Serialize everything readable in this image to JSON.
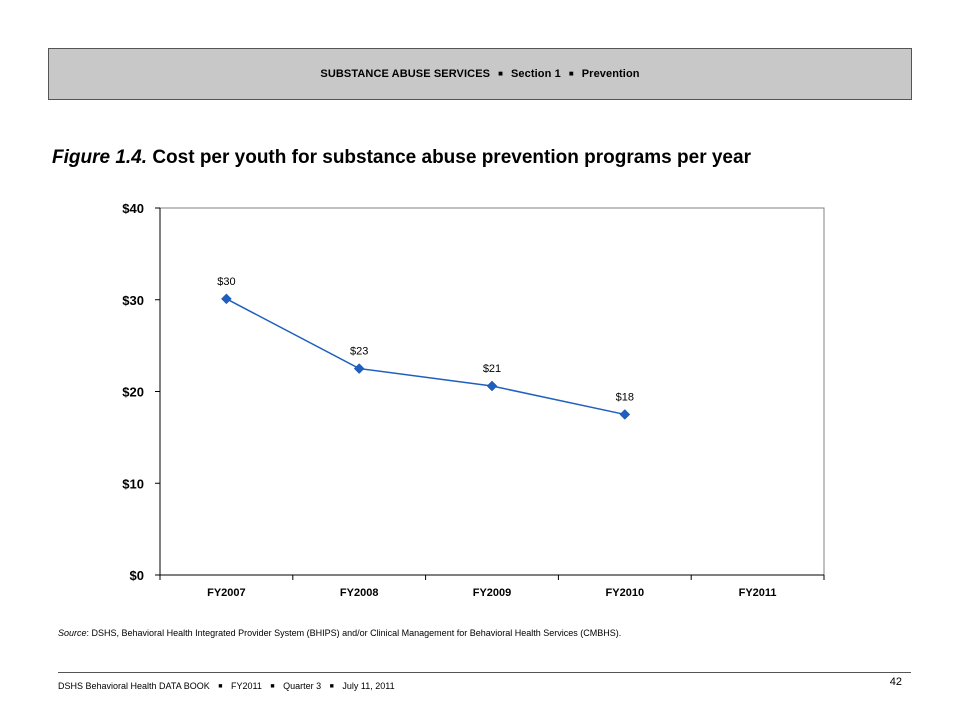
{
  "header": {
    "part1": "SUBSTANCE ABUSE SERVICES",
    "part2": "Section 1",
    "part3": "Prevention",
    "separator": "■"
  },
  "figure": {
    "label": "Figure 1.4.",
    "title": "Cost per youth for substance abuse prevention programs per year"
  },
  "chart_data": {
    "type": "line",
    "categories": [
      "FY2007",
      "FY2008",
      "FY2009",
      "FY2010",
      "FY2011"
    ],
    "series": [
      {
        "values": [
          30.1,
          22.5,
          20.6,
          17.5,
          null
        ],
        "labels": [
          "$30",
          "$23",
          "$21",
          "$18",
          null
        ]
      }
    ],
    "y_ticks": [
      0,
      10,
      20,
      30,
      40
    ],
    "y_tick_labels": [
      "$0",
      "$10",
      "$20",
      "$30",
      "$40"
    ],
    "ylim": [
      0,
      40
    ],
    "grid": false,
    "line_color": "#1f5fbf",
    "marker": "diamond",
    "xlabel": "",
    "ylabel": ""
  },
  "source": {
    "label": "Source",
    "text": ": DSHS, Behavioral Health Integrated Provider System (BHIPS) and/or Clinical Management for Behavioral Health Services (CMBHS)."
  },
  "footer": {
    "part1": "DSHS Behavioral Health DATA BOOK",
    "part2": "FY2011",
    "part3": "Quarter 3",
    "part4": "July 11, 2011",
    "separator": "■",
    "page_number": "42"
  }
}
